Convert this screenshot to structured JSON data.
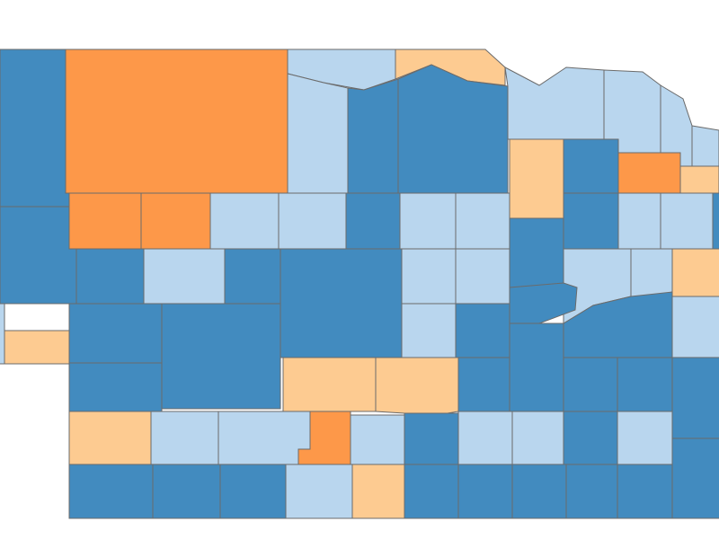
{
  "map": {
    "palette": [
      "#428bbf",
      "#b9d6ee",
      "#fdcb91",
      "#fd9849"
    ]
  }
}
